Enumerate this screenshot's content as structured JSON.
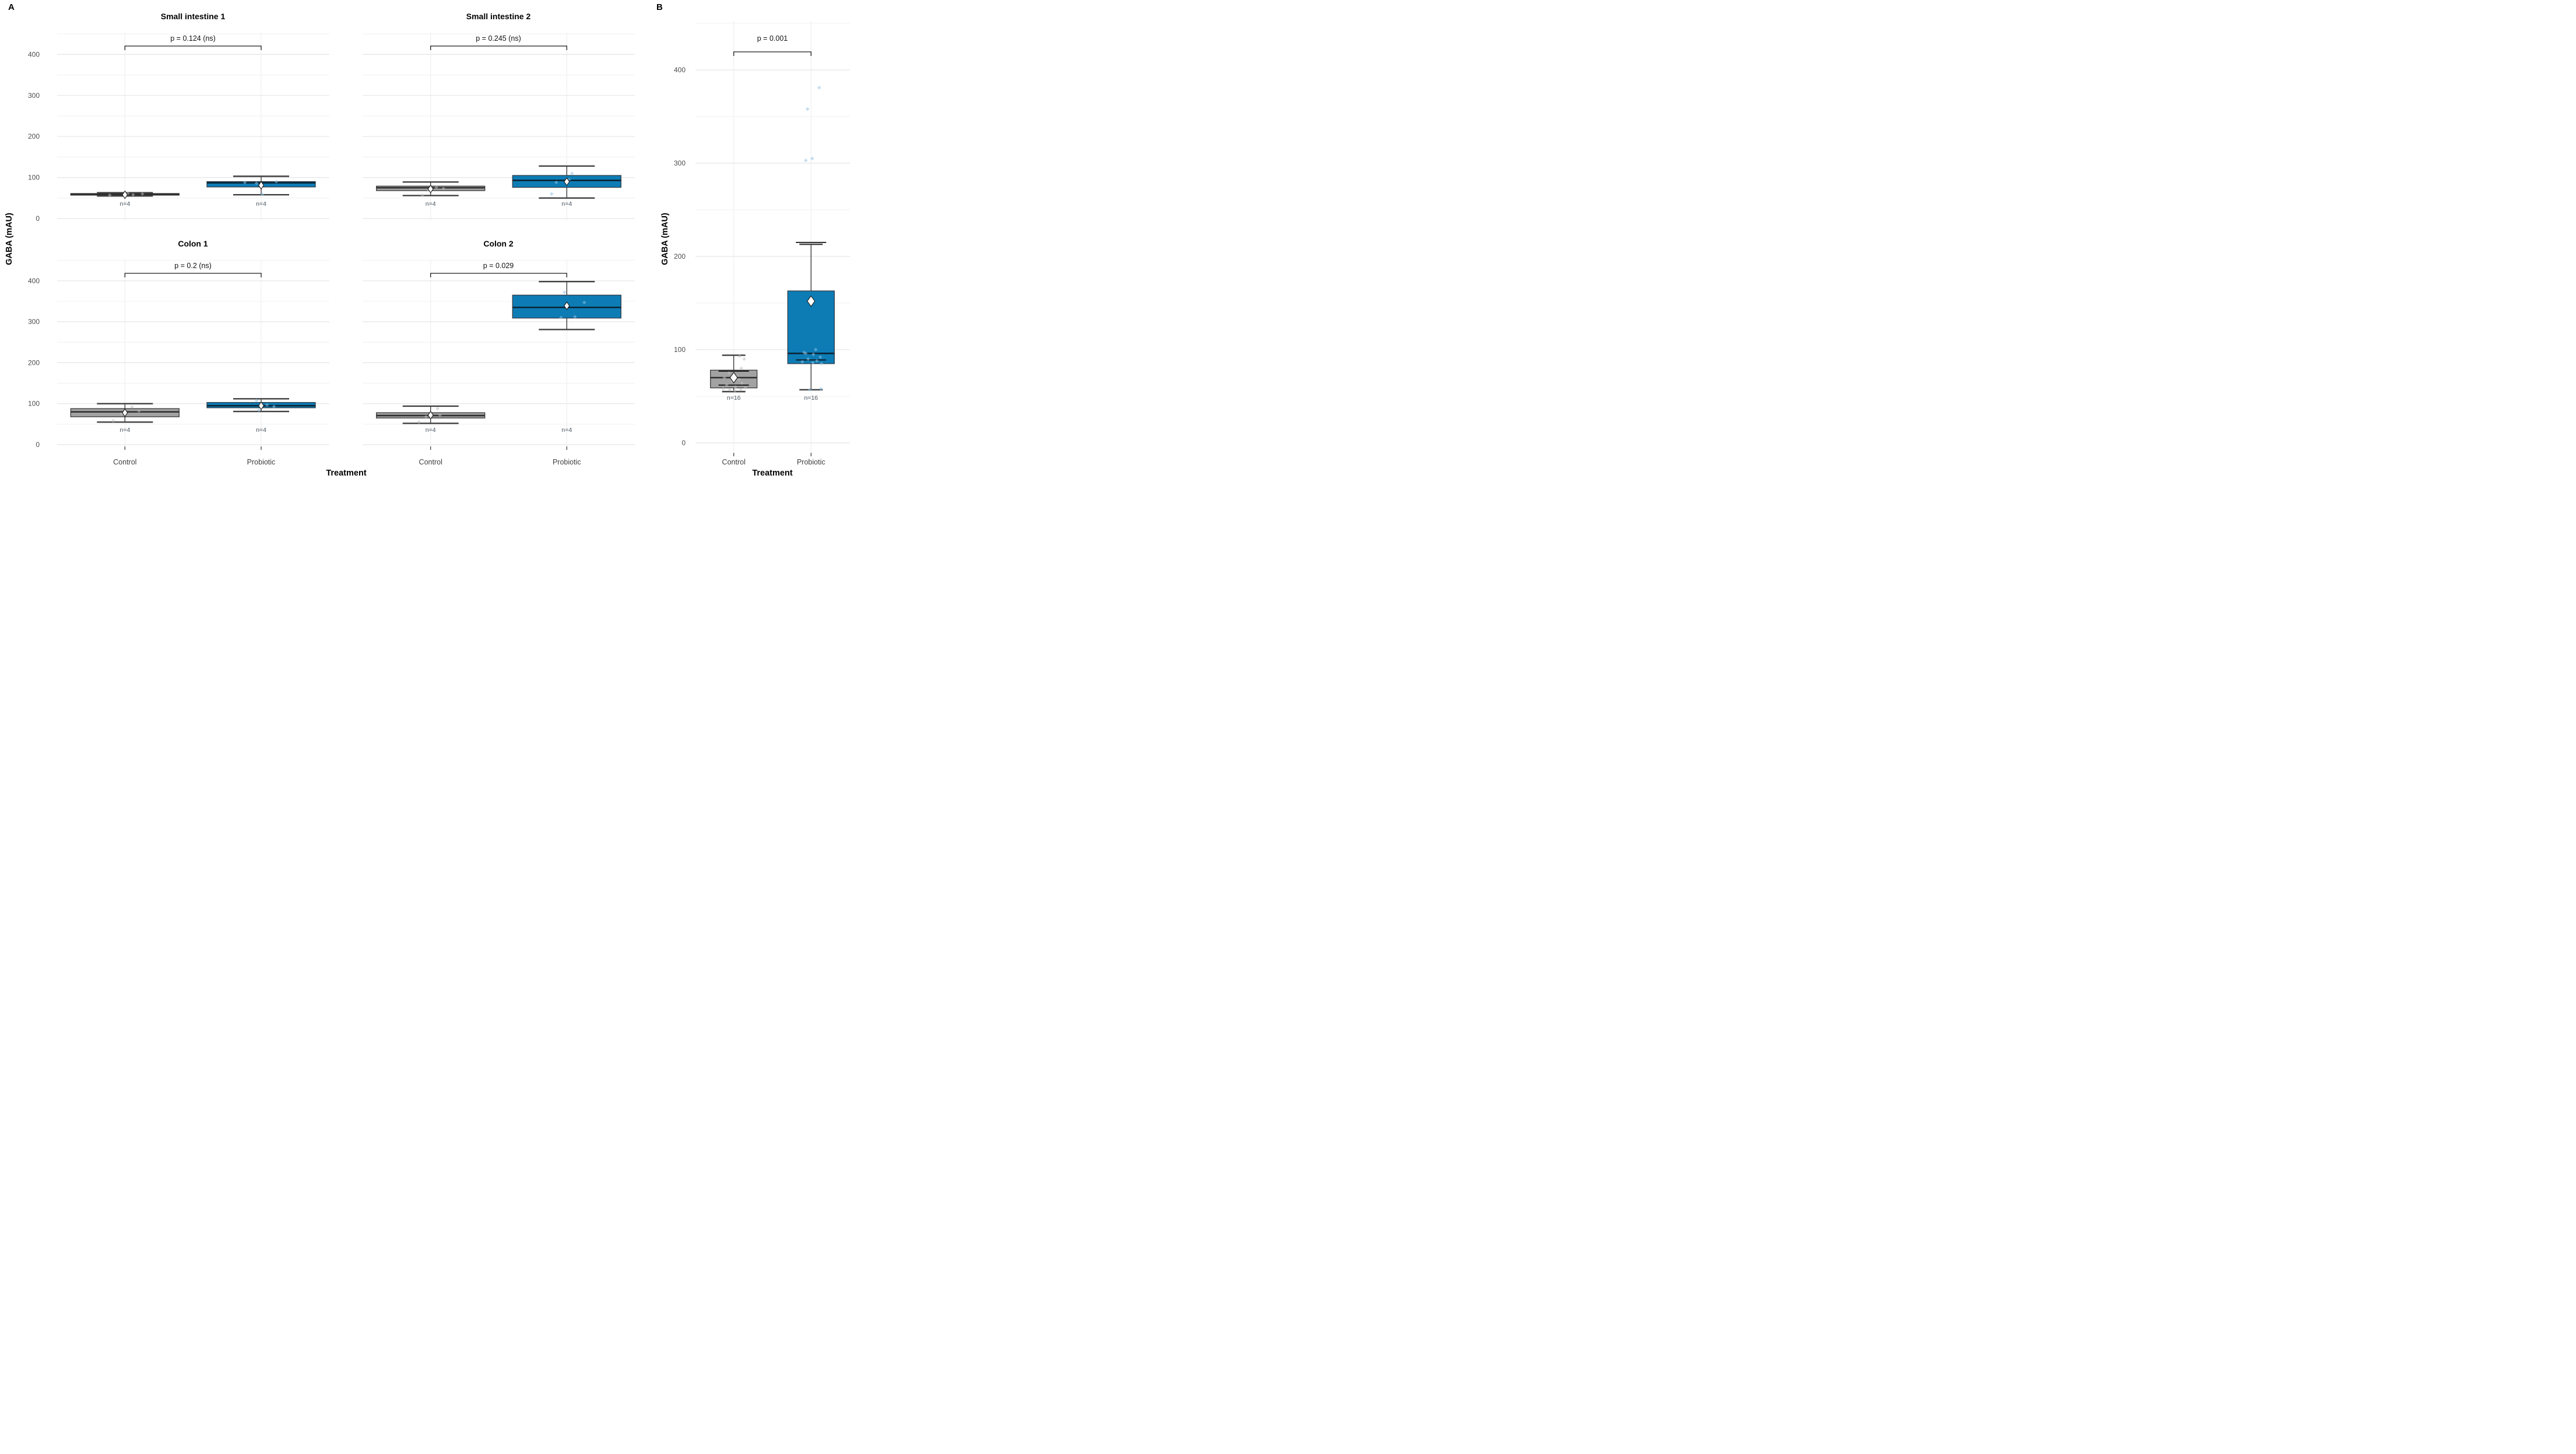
{
  "figure": {
    "panel_labels": {
      "a": "A",
      "b": "B"
    },
    "y_axis_title_a": "GABA (mAU)",
    "y_axis_title_b": "GABA (mAU)",
    "x_axis_title_a": "Treatment",
    "x_axis_title_b": "Treatment"
  },
  "chart_data": {
    "type": "boxplot",
    "y_ticks": [
      0,
      100,
      200,
      300,
      400
    ],
    "minor_step": 50,
    "categories": [
      "Control",
      "Probiotic"
    ],
    "ylabel": "GABA (mAU)",
    "xlabel": "Treatment",
    "colors": {
      "control_fill": "#a2a2a2",
      "control_border": "#3a3a3a",
      "control_median": "#2e2e2e",
      "control_jitter": "#bdbdbd",
      "probiotic_fill": "#0d7cb5",
      "probiotic_border": "#333d47",
      "probiotic_median": "#0b2435",
      "probiotic_jitter": "#8fc1e3",
      "grid_major": "#e5e5e5",
      "grid_minor": "#f0f0f0",
      "grid_vertical": "#ececec",
      "tick_text": "#4d4d4d",
      "category_text": "#3d3d3d",
      "n_text": "#47525c",
      "whisker": "#1c1c1c",
      "bracket": "#1a1a1a",
      "mean_fill": "#ffffff",
      "mean_stroke": "#1a1a1a"
    },
    "panels": [
      {
        "id": "si1",
        "figure_panel": "A",
        "title": "Small intestine 1",
        "p_label": "p = 0.124 (ns)",
        "ylim": [
          0,
          455
        ],
        "groups": [
          {
            "name": "Control",
            "n_label": "n=4",
            "style": "control",
            "stats": {
              "min": 55,
              "q1": 57,
              "median": 59,
              "q3": 61,
              "max": 63,
              "mean": 58
            },
            "jitter": [
              [
                57,
                -26
              ],
              [
                58,
                14
              ],
              [
                60,
                30
              ],
              [
                61,
                5
              ]
            ]
          },
          {
            "name": "Probiotic",
            "n_label": "n=4",
            "style": "probiotic",
            "stats": {
              "min": 58,
              "q1": 77,
              "median": 87,
              "q3": 90,
              "max": 103,
              "mean": 81
            },
            "jitter": [
              [
                88,
                -28
              ],
              [
                90,
                26
              ],
              [
                59,
                2
              ],
              [
                86,
                -8
              ]
            ]
          }
        ]
      },
      {
        "id": "si2",
        "figure_panel": "A",
        "title": "Small intestine 2",
        "p_label": "p = 0.245 (ns)",
        "ylim": [
          0,
          455
        ],
        "groups": [
          {
            "name": "Control",
            "n_label": "n=4",
            "style": "control",
            "stats": {
              "min": 56,
              "q1": 68,
              "median": 75,
              "q3": 79,
              "max": 89,
              "mean": 72
            },
            "jitter": [
              [
                76,
                10
              ],
              [
                73,
                22
              ],
              [
                57,
                -14
              ],
              [
                70,
                -4
              ]
            ]
          },
          {
            "name": "Probiotic",
            "n_label": "n=4",
            "style": "probiotic",
            "stats": {
              "min": 50,
              "q1": 76,
              "median": 93,
              "q3": 105,
              "max": 128,
              "mean": 90
            },
            "jitter": [
              [
                110,
                9
              ],
              [
                60,
                -26
              ],
              [
                88,
                -18
              ],
              [
                95,
                4
              ]
            ]
          }
        ]
      },
      {
        "id": "colon1",
        "figure_panel": "A",
        "title": "Colon 1",
        "p_label": "p = 0.2 (ns)",
        "ylim": [
          0,
          455
        ],
        "groups": [
          {
            "name": "Control",
            "n_label": "n=4",
            "style": "control",
            "stats": {
              "min": 55,
              "q1": 68,
              "median": 80,
              "q3": 88,
              "max": 100,
              "mean": 78
            },
            "jitter": [
              [
                92,
                12
              ],
              [
                58,
                -20
              ],
              [
                82,
                24
              ],
              [
                75,
                -6
              ]
            ]
          },
          {
            "name": "Probiotic",
            "n_label": "n=4",
            "style": "probiotic",
            "stats": {
              "min": 81,
              "q1": 90,
              "median": 95,
              "q3": 103,
              "max": 112,
              "mean": 95
            },
            "jitter": [
              [
                108,
                -8
              ],
              [
                84,
                -4
              ],
              [
                97,
                10
              ],
              [
                93,
                22
              ]
            ]
          }
        ]
      },
      {
        "id": "colon2",
        "figure_panel": "A",
        "title": "Colon 2",
        "p_label": "p = 0.029",
        "ylim": [
          0,
          455
        ],
        "groups": [
          {
            "name": "Control",
            "n_label": "n=4",
            "style": "control",
            "stats": {
              "min": 52,
              "q1": 65,
              "median": 71,
              "q3": 78,
              "max": 94,
              "mean": 72
            },
            "jitter": [
              [
                88,
                12
              ],
              [
                55,
                -20
              ],
              [
                72,
                16
              ],
              [
                68,
                -8
              ]
            ]
          },
          {
            "name": "Probiotic",
            "n_label": "n=4",
            "style": "probiotic",
            "stats": {
              "min": 281,
              "q1": 309,
              "median": 335,
              "q3": 365,
              "max": 398,
              "mean": 339
            },
            "jitter": [
              [
                372,
                -4
              ],
              [
                310,
                -10
              ],
              [
                312,
                14
              ],
              [
                347,
                30
              ]
            ]
          }
        ]
      },
      {
        "id": "overall",
        "figure_panel": "B",
        "title": "",
        "p_label": "p = 0.001",
        "ylim": [
          0,
          460
        ],
        "groups": [
          {
            "name": "Control",
            "n_label": "n=16",
            "style": "control",
            "stats": {
              "min": 55,
              "q1": 59,
              "median": 70,
              "q3": 78,
              "max": 94,
              "mean": 70
            },
            "se_caps": [
              62,
              77
            ],
            "jitter": [
              [
                93,
                10
              ],
              [
                90,
                18
              ],
              [
                80,
                13
              ],
              [
                75,
                -8
              ],
              [
                72,
                5
              ],
              [
                70,
                -16
              ],
              [
                68,
                9
              ],
              [
                66,
                -3
              ],
              [
                64,
                14
              ],
              [
                62,
                -12
              ],
              [
                60,
                3
              ],
              [
                59,
                20
              ],
              [
                58,
                -18
              ],
              [
                57,
                -7
              ],
              [
                57,
                12
              ],
              [
                56,
                2
              ]
            ]
          },
          {
            "name": "Probiotic",
            "n_label": "n=16",
            "style": "probiotic",
            "stats": {
              "min": 57,
              "q1": 85,
              "median": 96,
              "q3": 163,
              "max": 213,
              "mean": 152
            },
            "se_caps": [
              89,
              215
            ],
            "jitter": [
              [
                381,
                14
              ],
              [
                358,
                -6
              ],
              [
                305,
                2
              ],
              [
                303,
                -9
              ],
              [
                100,
                8
              ],
              [
                97,
                -12
              ],
              [
                96,
                -9
              ],
              [
                95,
                4
              ],
              [
                92,
                16
              ],
              [
                90,
                -5
              ],
              [
                88,
                10
              ],
              [
                87,
                -15
              ],
              [
                86,
                3
              ],
              [
                85,
                18
              ],
              [
                58,
                17
              ],
              [
                57,
                -2
              ]
            ]
          }
        ]
      }
    ]
  }
}
